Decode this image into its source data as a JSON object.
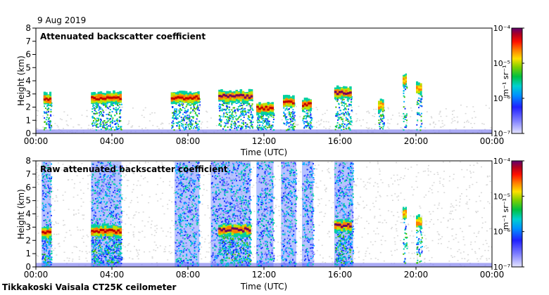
{
  "date": "9 Aug 2019",
  "footer": "Tikkakoski Vaisala CT25K ceilometer",
  "colors": {
    "background_gray": "#d8d8d8",
    "ground_band": "#8c8cf0",
    "colormap": [
      "#d8d8ff",
      "#7070ff",
      "#1030ff",
      "#00b0ff",
      "#00d0a0",
      "#40c000",
      "#c0e000",
      "#ffe000",
      "#ff8000",
      "#ff1000",
      "#c00000",
      "#700060"
    ]
  },
  "chart_data": [
    {
      "type": "heatmap",
      "title": "Attenuated backscatter coefficient",
      "xlabel": "Time (UTC)",
      "ylabel": "Height (km)",
      "x_ticks": [
        "00:00",
        "04:00",
        "08:00",
        "12:00",
        "16:00",
        "20:00",
        "00:00"
      ],
      "x_range_hours": [
        0,
        24
      ],
      "y_ticks": [
        0,
        1,
        2,
        3,
        4,
        5,
        6,
        7,
        8
      ],
      "ylim": [
        0,
        8
      ],
      "colorbar": {
        "scale": "log",
        "range": [
          1e-07,
          0.0001
        ],
        "tick_labels": [
          "10⁻⁷",
          "10⁻⁶",
          "10⁻⁵",
          "10⁻⁴"
        ],
        "unit_label": "m⁻¹ sr⁻¹"
      },
      "features": [
        {
          "kind": "cloud_layer",
          "time_start": 0.4,
          "time_end": 0.8,
          "height_km": 2.6,
          "intensity": "high"
        },
        {
          "kind": "cloud_layer",
          "time_start": 2.9,
          "time_end": 4.5,
          "height_km": 2.7,
          "intensity": "high"
        },
        {
          "kind": "cloud_layer",
          "time_start": 7.1,
          "time_end": 8.6,
          "height_km": 2.7,
          "intensity": "high"
        },
        {
          "kind": "cloud_layer",
          "time_start": 9.6,
          "time_end": 11.4,
          "height_km": 2.8,
          "intensity": "very_high"
        },
        {
          "kind": "cloud_layer",
          "time_start": 11.6,
          "time_end": 12.5,
          "height_km": 1.9,
          "intensity": "high"
        },
        {
          "kind": "cloud_layer",
          "time_start": 13.0,
          "time_end": 13.6,
          "height_km": 2.4,
          "intensity": "high"
        },
        {
          "kind": "cloud_layer",
          "time_start": 14.0,
          "time_end": 14.5,
          "height_km": 2.2,
          "intensity": "high"
        },
        {
          "kind": "cloud_layer",
          "time_start": 15.7,
          "time_end": 16.6,
          "height_km": 3.1,
          "intensity": "very_high"
        },
        {
          "kind": "cloud_layer",
          "time_start": 18.0,
          "time_end": 18.3,
          "height_km": 2.1,
          "intensity": "medium"
        },
        {
          "kind": "cloud_layer",
          "time_start": 19.3,
          "time_end": 19.5,
          "height_km": 4.0,
          "intensity": "medium"
        },
        {
          "kind": "cloud_layer",
          "time_start": 20.0,
          "time_end": 20.3,
          "height_km": 3.4,
          "intensity": "medium"
        }
      ]
    },
    {
      "type": "heatmap",
      "title": "Raw attenuated backscatter coefficient",
      "xlabel": "Time (UTC)",
      "ylabel": "Height (km)",
      "x_ticks": [
        "00:00",
        "04:00",
        "08:00",
        "12:00",
        "16:00",
        "20:00",
        "00:00"
      ],
      "x_range_hours": [
        0,
        24
      ],
      "y_ticks": [
        0,
        1,
        2,
        3,
        4,
        5,
        6,
        7,
        8
      ],
      "ylim": [
        0,
        8
      ],
      "colorbar": {
        "scale": "log",
        "range": [
          1e-07,
          0.0001
        ],
        "tick_labels": [
          "10⁻⁷",
          "10⁻⁶",
          "10⁻⁵",
          "10⁻⁴"
        ],
        "unit_label": "m⁻¹ sr⁻¹"
      },
      "features": [
        {
          "kind": "noise_column",
          "time_start": 0.3,
          "time_end": 0.8
        },
        {
          "kind": "noise_column",
          "time_start": 2.9,
          "time_end": 4.5
        },
        {
          "kind": "noise_column",
          "time_start": 7.3,
          "time_end": 8.6
        },
        {
          "kind": "noise_column",
          "time_start": 9.2,
          "time_end": 11.3
        },
        {
          "kind": "noise_column",
          "time_start": 11.6,
          "time_end": 12.5
        },
        {
          "kind": "noise_column",
          "time_start": 12.9,
          "time_end": 13.7
        },
        {
          "kind": "noise_column",
          "time_start": 14.0,
          "time_end": 14.6
        },
        {
          "kind": "noise_column",
          "time_start": 15.7,
          "time_end": 16.7
        },
        {
          "kind": "cloud_layer",
          "time_start": 0.3,
          "time_end": 0.8,
          "height_km": 2.6,
          "intensity": "high"
        },
        {
          "kind": "cloud_layer",
          "time_start": 2.9,
          "time_end": 4.5,
          "height_km": 2.7,
          "intensity": "high"
        },
        {
          "kind": "cloud_layer",
          "time_start": 9.6,
          "time_end": 11.3,
          "height_km": 2.8,
          "intensity": "very_high"
        },
        {
          "kind": "cloud_layer",
          "time_start": 15.7,
          "time_end": 16.6,
          "height_km": 3.1,
          "intensity": "very_high"
        },
        {
          "kind": "cloud_layer",
          "time_start": 19.3,
          "time_end": 19.5,
          "height_km": 4.0,
          "intensity": "medium"
        },
        {
          "kind": "cloud_layer",
          "time_start": 20.0,
          "time_end": 20.3,
          "height_km": 3.4,
          "intensity": "medium"
        }
      ]
    }
  ]
}
